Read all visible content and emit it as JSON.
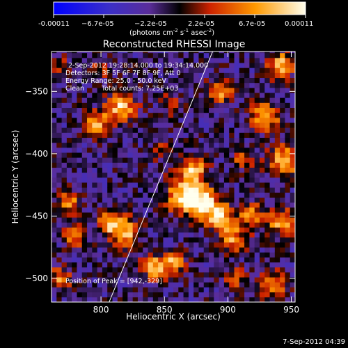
{
  "chart_data": {
    "type": "heatmap",
    "title": "Reconstructed RHESSI Image",
    "xlabel": "Heliocentric X (arcsec)",
    "ylabel": "Heliocentric Y (arcsec)",
    "xlim": [
      761,
      953
    ],
    "ylim": [
      -519,
      -318
    ],
    "x_ticks": [
      {
        "value": 800,
        "label": "800"
      },
      {
        "value": 850,
        "label": "850"
      },
      {
        "value": 900,
        "label": "900"
      },
      {
        "value": 950,
        "label": "950"
      }
    ],
    "y_ticks": [
      {
        "value": -500,
        "label": "−500"
      },
      {
        "value": -450,
        "label": "−450"
      },
      {
        "value": -400,
        "label": "−400"
      },
      {
        "value": -350,
        "label": "−350"
      }
    ],
    "colorbar": {
      "min": -0.00011,
      "max": 0.00011,
      "tick_labels": [
        "-0.00011",
        "−6.7e-05",
        "−2.2e-05",
        "2.2e-05",
        "6.7e-05",
        "0.00011"
      ],
      "units_label": "(photons cm",
      "units_exp1": "-2",
      "units_mid": " s",
      "units_exp2": "-1",
      "units_end": " asec",
      "units_exp3": "-2",
      "units_close": ")",
      "colors": [
        "#0000ff",
        "#5a2d9a",
        "#000000",
        "#cc2200",
        "#ff9900",
        "#ffffee"
      ]
    },
    "annotations": {
      "time_range": "2-Sep-2012 19:28:14.000 to 19:34:14.000",
      "detectors": "Detectors: 3F 5F 6F 7F 8F 9F, Att 0",
      "energy": "Energy Range: 25.0 - 50.0 keV",
      "clean": "Clean",
      "total_counts": "Total counts: 7.25E+03",
      "peak": "Position of Peak = [942,-329]"
    },
    "peak": {
      "x": 942,
      "y": -329
    },
    "limb_line": [
      [
        806,
        -520
      ],
      [
        888,
        -318
      ]
    ],
    "sources": [
      {
        "x": 816,
        "y": -363,
        "amp": 0.95,
        "s": 8
      },
      {
        "x": 797,
        "y": -376,
        "amp": 0.8,
        "s": 7
      },
      {
        "x": 866,
        "y": -433,
        "amp": 1.0,
        "s": 10
      },
      {
        "x": 873,
        "y": -413,
        "amp": 0.9,
        "s": 7
      },
      {
        "x": 881,
        "y": -440,
        "amp": 0.95,
        "s": 9
      },
      {
        "x": 895,
        "y": -452,
        "amp": 0.85,
        "s": 8
      },
      {
        "x": 905,
        "y": -468,
        "amp": 0.7,
        "s": 7
      },
      {
        "x": 920,
        "y": -450,
        "amp": 0.75,
        "s": 7
      },
      {
        "x": 942,
        "y": -329,
        "amp": 1.0,
        "s": 7
      },
      {
        "x": 930,
        "y": -370,
        "amp": 0.85,
        "s": 8
      },
      {
        "x": 945,
        "y": -405,
        "amp": 0.85,
        "s": 9
      },
      {
        "x": 943,
        "y": -455,
        "amp": 0.9,
        "s": 7
      },
      {
        "x": 935,
        "y": -505,
        "amp": 0.85,
        "s": 7
      },
      {
        "x": 895,
        "y": -350,
        "amp": 0.75,
        "s": 7
      },
      {
        "x": 912,
        "y": -403,
        "amp": 0.6,
        "s": 6
      },
      {
        "x": 775,
        "y": -438,
        "amp": 0.8,
        "s": 6
      },
      {
        "x": 780,
        "y": -465,
        "amp": 0.75,
        "s": 6
      },
      {
        "x": 818,
        "y": -463,
        "amp": 0.95,
        "s": 8
      },
      {
        "x": 806,
        "y": -455,
        "amp": 0.8,
        "s": 6
      },
      {
        "x": 843,
        "y": -491,
        "amp": 0.85,
        "s": 7
      },
      {
        "x": 858,
        "y": -487,
        "amp": 0.8,
        "s": 6
      },
      {
        "x": 768,
        "y": -500,
        "amp": 0.75,
        "s": 6
      },
      {
        "x": 855,
        "y": -360,
        "amp": 0.4,
        "s": 6
      },
      {
        "x": 848,
        "y": -398,
        "amp": 0.45,
        "s": 5
      },
      {
        "x": 905,
        "y": -500,
        "amp": 0.5,
        "s": 6
      },
      {
        "x": 767,
        "y": -330,
        "amp": 0.45,
        "s": 6
      },
      {
        "x": 800,
        "y": -332,
        "amp": 0.45,
        "s": 5
      }
    ]
  },
  "footer": {
    "date": "7-Sep-2012 04:39"
  }
}
